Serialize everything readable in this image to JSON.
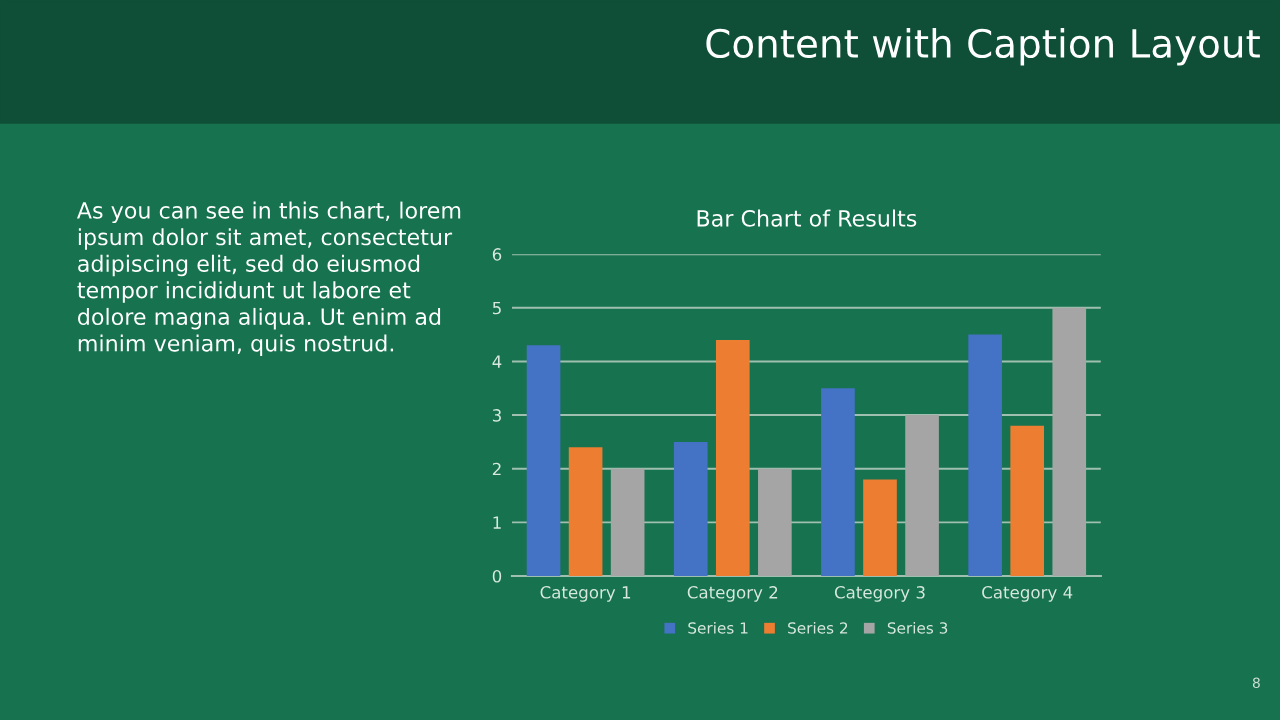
{
  "chart_data": {
    "type": "bar",
    "title": "Bar Chart of Results",
    "categories": [
      "Category 1",
      "Category 2",
      "Category 3",
      "Category 4"
    ],
    "series": [
      {
        "name": "Series 1",
        "color": "#4472c4",
        "values": [
          4.3,
          2.5,
          3.5,
          4.5
        ]
      },
      {
        "name": "Series 2",
        "color": "#ed7d31",
        "values": [
          2.4,
          4.4,
          1.8,
          2.8
        ]
      },
      {
        "name": "Series 3",
        "color": "#a5a5a5",
        "values": [
          2,
          2,
          3,
          5
        ]
      }
    ],
    "ylim": [
      0,
      6
    ],
    "yticks": [
      0,
      1,
      2,
      3,
      4,
      5,
      6
    ],
    "grid": "y",
    "legend": "bottom",
    "annotations": [
      "Content with Caption Layout",
      "As you can see in this chart, lorem\nipsum dolor sit amet, consectetur\nadipiscing elit, sed do eiusmod\ntempor incididunt ut labore et\ndolore magna aliqua. Ut enim ad\nminim veniam, quis nostrud.",
      "8"
    ]
  }
}
